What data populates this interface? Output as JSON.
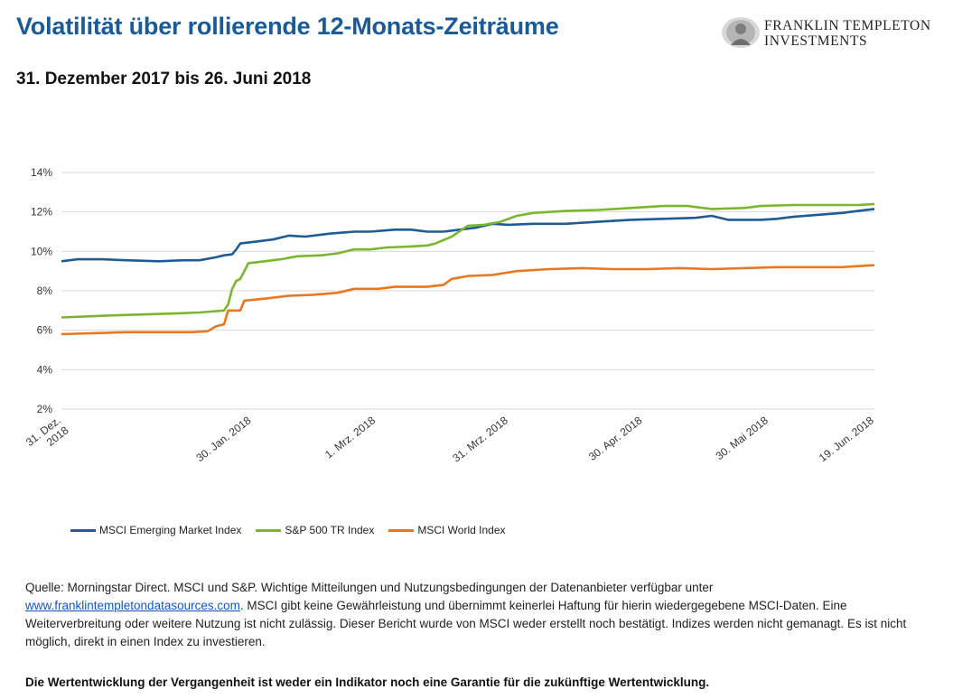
{
  "header": {
    "title": "Volatilität über rollierende 12-Monats-Zeiträume",
    "subtitle": "31. Dezember 2017 bis 26. Juni 2018"
  },
  "logo": {
    "line1": "FRANKLIN TEMPLETON",
    "line2": "INVESTMENTS"
  },
  "chart_data": {
    "type": "line",
    "title": "",
    "xlabel": "",
    "ylabel": "",
    "ylim": [
      2,
      14
    ],
    "y_ticks": [
      "2%",
      "4%",
      "6%",
      "8%",
      "10%",
      "12%",
      "14%"
    ],
    "x_ticks": [
      {
        "label_line1": "31. Dez.",
        "label_line2": "2018",
        "pos": 0.0
      },
      {
        "label_line1": "30. Jan. 2018",
        "label_line2": "",
        "pos": 0.234
      },
      {
        "label_line1": "1. Mrz. 2018",
        "label_line2": "",
        "pos": 0.387
      },
      {
        "label_line1": "31. Mrz. 2018",
        "label_line2": "",
        "pos": 0.55
      },
      {
        "label_line1": "30. Apr. 2018",
        "label_line2": "",
        "pos": 0.715
      },
      {
        "label_line1": "30. Mai 2018",
        "label_line2": "",
        "pos": 0.87
      },
      {
        "label_line1": "19. Jun. 2018",
        "label_line2": "",
        "pos": 1.0
      }
    ],
    "grid": true,
    "legend_position": "bottom-left",
    "series": [
      {
        "name": "MSCI Emerging Market Index",
        "color": "#1f5b94",
        "points": [
          [
            0,
            9.5
          ],
          [
            0.02,
            9.6
          ],
          [
            0.05,
            9.6
          ],
          [
            0.08,
            9.55
          ],
          [
            0.12,
            9.5
          ],
          [
            0.15,
            9.55
          ],
          [
            0.17,
            9.55
          ],
          [
            0.19,
            9.7
          ],
          [
            0.2,
            9.8
          ],
          [
            0.21,
            9.85
          ],
          [
            0.215,
            10.1
          ],
          [
            0.22,
            10.4
          ],
          [
            0.24,
            10.5
          ],
          [
            0.26,
            10.6
          ],
          [
            0.28,
            10.8
          ],
          [
            0.3,
            10.75
          ],
          [
            0.33,
            10.9
          ],
          [
            0.36,
            11.0
          ],
          [
            0.38,
            11.0
          ],
          [
            0.41,
            11.1
          ],
          [
            0.43,
            11.1
          ],
          [
            0.45,
            11.0
          ],
          [
            0.47,
            11.0
          ],
          [
            0.49,
            11.1
          ],
          [
            0.51,
            11.2
          ],
          [
            0.53,
            11.4
          ],
          [
            0.55,
            11.35
          ],
          [
            0.58,
            11.4
          ],
          [
            0.62,
            11.4
          ],
          [
            0.66,
            11.5
          ],
          [
            0.7,
            11.6
          ],
          [
            0.74,
            11.65
          ],
          [
            0.78,
            11.7
          ],
          [
            0.8,
            11.8
          ],
          [
            0.82,
            11.6
          ],
          [
            0.86,
            11.6
          ],
          [
            0.88,
            11.65
          ],
          [
            0.9,
            11.75
          ],
          [
            0.93,
            11.85
          ],
          [
            0.96,
            11.95
          ],
          [
            0.98,
            12.05
          ],
          [
            1.0,
            12.15
          ]
        ]
      },
      {
        "name": "S&P 500 TR Index",
        "color": "#7ab72e",
        "points": [
          [
            0,
            6.65
          ],
          [
            0.03,
            6.7
          ],
          [
            0.06,
            6.75
          ],
          [
            0.1,
            6.8
          ],
          [
            0.14,
            6.85
          ],
          [
            0.17,
            6.9
          ],
          [
            0.2,
            7.0
          ],
          [
            0.205,
            7.3
          ],
          [
            0.21,
            8.1
          ],
          [
            0.215,
            8.5
          ],
          [
            0.22,
            8.6
          ],
          [
            0.23,
            9.4
          ],
          [
            0.25,
            9.5
          ],
          [
            0.27,
            9.6
          ],
          [
            0.29,
            9.75
          ],
          [
            0.32,
            9.8
          ],
          [
            0.34,
            9.9
          ],
          [
            0.36,
            10.1
          ],
          [
            0.38,
            10.1
          ],
          [
            0.4,
            10.2
          ],
          [
            0.43,
            10.25
          ],
          [
            0.45,
            10.3
          ],
          [
            0.46,
            10.4
          ],
          [
            0.48,
            10.75
          ],
          [
            0.5,
            11.3
          ],
          [
            0.52,
            11.35
          ],
          [
            0.54,
            11.5
          ],
          [
            0.56,
            11.8
          ],
          [
            0.58,
            11.95
          ],
          [
            0.62,
            12.05
          ],
          [
            0.66,
            12.1
          ],
          [
            0.7,
            12.2
          ],
          [
            0.74,
            12.3
          ],
          [
            0.77,
            12.3
          ],
          [
            0.8,
            12.15
          ],
          [
            0.84,
            12.2
          ],
          [
            0.86,
            12.3
          ],
          [
            0.9,
            12.35
          ],
          [
            0.94,
            12.35
          ],
          [
            0.98,
            12.35
          ],
          [
            1.0,
            12.4
          ]
        ]
      },
      {
        "name": "MSCI World Index",
        "color": "#e8781f",
        "points": [
          [
            0,
            5.8
          ],
          [
            0.04,
            5.85
          ],
          [
            0.08,
            5.9
          ],
          [
            0.12,
            5.9
          ],
          [
            0.16,
            5.9
          ],
          [
            0.18,
            5.95
          ],
          [
            0.19,
            6.2
          ],
          [
            0.2,
            6.3
          ],
          [
            0.205,
            7.0
          ],
          [
            0.22,
            7.0
          ],
          [
            0.225,
            7.5
          ],
          [
            0.25,
            7.6
          ],
          [
            0.28,
            7.75
          ],
          [
            0.31,
            7.8
          ],
          [
            0.34,
            7.9
          ],
          [
            0.36,
            8.1
          ],
          [
            0.39,
            8.1
          ],
          [
            0.41,
            8.2
          ],
          [
            0.45,
            8.2
          ],
          [
            0.47,
            8.3
          ],
          [
            0.48,
            8.6
          ],
          [
            0.5,
            8.75
          ],
          [
            0.53,
            8.8
          ],
          [
            0.56,
            9.0
          ],
          [
            0.6,
            9.1
          ],
          [
            0.64,
            9.15
          ],
          [
            0.68,
            9.1
          ],
          [
            0.72,
            9.1
          ],
          [
            0.76,
            9.15
          ],
          [
            0.8,
            9.1
          ],
          [
            0.84,
            9.15
          ],
          [
            0.88,
            9.2
          ],
          [
            0.92,
            9.2
          ],
          [
            0.96,
            9.2
          ],
          [
            1.0,
            9.3
          ]
        ]
      }
    ]
  },
  "legend": {
    "items": [
      {
        "label": "MSCI Emerging Market Index",
        "color": "#1f5b94"
      },
      {
        "label": "S&P 500 TR Index",
        "color": "#7ab72e"
      },
      {
        "label": "MSCI World Index",
        "color": "#e8781f"
      }
    ]
  },
  "source": {
    "line1": "Quelle: Morningstar Direct. MSCI und S&P.  Wichtige Mitteilungen und Nutzungsbedingungen der Datenanbieter verfügbar unter",
    "link": "www.franklintempletondatasources.com",
    "line2_rest": ". MSCI gibt keine Gewährleistung und übernimmt keinerlei Haftung für hierin wiedergegebene MSCI-Daten. Eine",
    "line3": "Weiterverbreitung oder weitere Nutzung ist nicht zulässig. Dieser Bericht wurde von MSCI weder erstellt noch bestätigt. Indizes werden nicht gemanagt. Es ist nicht",
    "line4": "möglich, direkt in einen Index zu investieren."
  },
  "disclaimer": "Die Wertentwicklung der Vergangenheit ist weder ein Indikator noch eine Garantie für die zukünftige Wertentwicklung."
}
